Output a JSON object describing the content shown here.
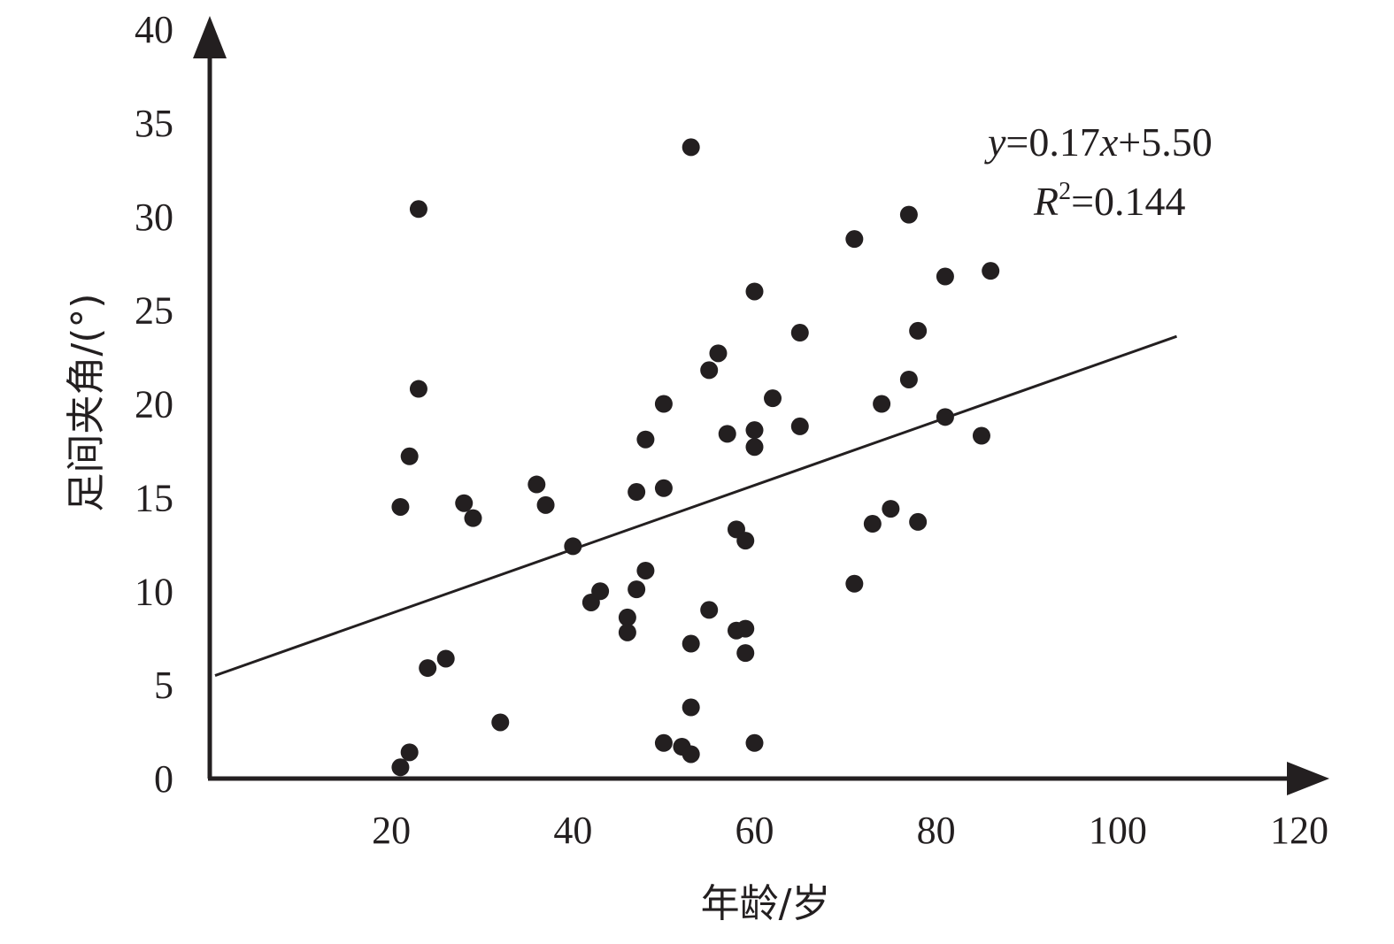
{
  "chart_data": {
    "type": "scatter",
    "title": "",
    "xlabel": "年龄/岁",
    "ylabel": "足间夹角/(°)",
    "xlim": [
      0,
      120
    ],
    "ylim": [
      0,
      40
    ],
    "x_ticks": [
      "20",
      "40",
      "60",
      "80",
      "100",
      "120"
    ],
    "y_ticks": [
      "0",
      "5",
      "10",
      "15",
      "20",
      "25",
      "30",
      "35",
      "40"
    ],
    "grid": false,
    "fit_line": {
      "slope": 0.17,
      "intercept": 5.5,
      "x_start": 0,
      "x_end": 106.5
    },
    "annotations": {
      "equation": {
        "y_var": "y",
        "eq_mid": "=0.17",
        "x_var": "x",
        "eq_end": "+5.50"
      },
      "r_squared": {
        "r": "R",
        "exp": "2",
        "value": "=0.144"
      }
    },
    "series": [
      {
        "points": [
          [
            21,
            0.6
          ],
          [
            22,
            1.4
          ],
          [
            21,
            14.5
          ],
          [
            22,
            17.2
          ],
          [
            23,
            20.8
          ],
          [
            23,
            30.4
          ],
          [
            24,
            5.9
          ],
          [
            26,
            6.4
          ],
          [
            28,
            14.7
          ],
          [
            29,
            13.9
          ],
          [
            32,
            3.0
          ],
          [
            36,
            15.7
          ],
          [
            37,
            14.6
          ],
          [
            40,
            12.4
          ],
          [
            42,
            9.4
          ],
          [
            43,
            10.0
          ],
          [
            46,
            8.6
          ],
          [
            46,
            7.8
          ],
          [
            47,
            10.1
          ],
          [
            47,
            15.3
          ],
          [
            48,
            11.1
          ],
          [
            48,
            18.1
          ],
          [
            50,
            20.0
          ],
          [
            50,
            15.5
          ],
          [
            50,
            1.9
          ],
          [
            52,
            1.7
          ],
          [
            53,
            1.3
          ],
          [
            53,
            3.8
          ],
          [
            53,
            7.2
          ],
          [
            53,
            33.7
          ],
          [
            55,
            9.0
          ],
          [
            55,
            21.8
          ],
          [
            56,
            22.7
          ],
          [
            57,
            18.4
          ],
          [
            58,
            13.3
          ],
          [
            58,
            7.9
          ],
          [
            59,
            12.7
          ],
          [
            59,
            8.0
          ],
          [
            59,
            6.7
          ],
          [
            60,
            26.0
          ],
          [
            60,
            18.6
          ],
          [
            60,
            17.7
          ],
          [
            60,
            1.9
          ],
          [
            62,
            20.3
          ],
          [
            65,
            23.8
          ],
          [
            65,
            18.8
          ],
          [
            71,
            28.8
          ],
          [
            71,
            10.4
          ],
          [
            73,
            13.6
          ],
          [
            74,
            20.0
          ],
          [
            75,
            14.4
          ],
          [
            77,
            30.1
          ],
          [
            77,
            21.3
          ],
          [
            78,
            23.9
          ],
          [
            78,
            13.7
          ],
          [
            81,
            26.8
          ],
          [
            81,
            19.3
          ],
          [
            85,
            18.3
          ],
          [
            86,
            27.1
          ]
        ]
      }
    ]
  }
}
